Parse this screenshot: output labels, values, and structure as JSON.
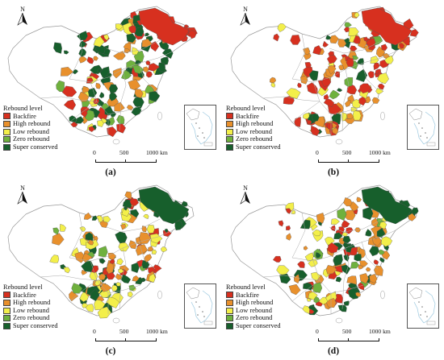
{
  "figure": {
    "panels": [
      {
        "id": "a",
        "caption": "(a)",
        "fill_weights": [
          0.28,
          0.22,
          0.14,
          0.06,
          0.3
        ],
        "northeast_class": 0
      },
      {
        "id": "b",
        "caption": "(b)",
        "fill_weights": [
          0.42,
          0.27,
          0.18,
          0.05,
          0.08
        ],
        "northeast_class": 0
      },
      {
        "id": "c",
        "caption": "(c)",
        "fill_weights": [
          0.1,
          0.26,
          0.34,
          0.06,
          0.24
        ],
        "northeast_class": 4
      },
      {
        "id": "d",
        "caption": "(d)",
        "fill_weights": [
          0.22,
          0.24,
          0.22,
          0.04,
          0.28
        ],
        "northeast_class": 4
      }
    ],
    "north_arrow_label": "N",
    "legend": {
      "title": "Rebound level",
      "items": [
        {
          "label": "Backfire",
          "color": "#d7301f"
        },
        {
          "label": "High rebound",
          "color": "#e8902c"
        },
        {
          "label": "Low rebound",
          "color": "#f3ef4a"
        },
        {
          "label": "Zero rebound",
          "color": "#6fb13e"
        },
        {
          "label": "Super conserved",
          "color": "#175f2c"
        }
      ]
    },
    "scale_bar": {
      "ticks": [
        "0",
        "500",
        "1000 km"
      ]
    }
  }
}
